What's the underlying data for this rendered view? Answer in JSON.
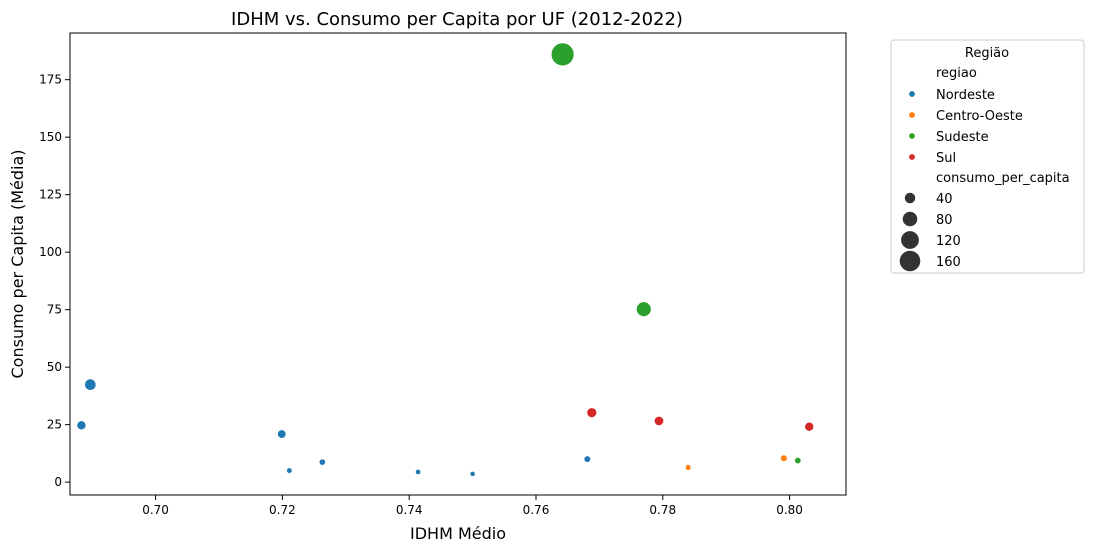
{
  "chart_data": {
    "type": "scatter",
    "title": "IDHM vs. Consumo per Capita por UF (2012-2022)",
    "xlabel": "IDHM Médio",
    "ylabel": "Consumo per Capita (Média)",
    "xlim": [
      0.6865,
      0.8089
    ],
    "ylim": [
      -5.6,
      195.3
    ],
    "x_ticks": [
      0.7,
      0.72,
      0.74,
      0.76,
      0.78,
      0.8
    ],
    "x_tick_labels": [
      "0.70",
      "0.72",
      "0.74",
      "0.76",
      "0.78",
      "0.80"
    ],
    "y_ticks": [
      0,
      25,
      50,
      75,
      100,
      125,
      150,
      175
    ],
    "y_tick_labels": [
      "0",
      "25",
      "50",
      "75",
      "100",
      "125",
      "150",
      "175"
    ],
    "grid": false,
    "legend": {
      "title": "Região",
      "placement": "outside-right",
      "hue_title": "regiao",
      "size_title": "consumo_per_capita",
      "size_labels": [
        "40",
        "80",
        "120",
        "160"
      ],
      "size_values": [
        40,
        80,
        120,
        160
      ]
    },
    "size_range": [
      3.6,
      186.0
    ],
    "series": [
      {
        "name": "Nordeste",
        "color": "#1f77b4",
        "points": [
          {
            "x": 0.6883,
            "y": 24.7
          },
          {
            "x": 0.6897,
            "y": 42.4
          },
          {
            "x": 0.7199,
            "y": 20.9
          },
          {
            "x": 0.7211,
            "y": 5.0
          },
          {
            "x": 0.7263,
            "y": 8.7
          },
          {
            "x": 0.7414,
            "y": 4.4
          },
          {
            "x": 0.75,
            "y": 3.6
          },
          {
            "x": 0.7681,
            "y": 10.0
          }
        ]
      },
      {
        "name": "Centro-Oeste",
        "color": "#ff7f0e",
        "points": [
          {
            "x": 0.784,
            "y": 6.4
          },
          {
            "x": 0.7991,
            "y": 10.4
          }
        ]
      },
      {
        "name": "Sudeste",
        "color": "#2ca02c",
        "points": [
          {
            "x": 0.7642,
            "y": 186.0
          },
          {
            "x": 0.777,
            "y": 75.2
          },
          {
            "x": 0.8013,
            "y": 9.4
          }
        ]
      },
      {
        "name": "Sul",
        "color": "#d62728",
        "points": [
          {
            "x": 0.7688,
            "y": 30.2
          },
          {
            "x": 0.7794,
            "y": 26.6
          },
          {
            "x": 0.8031,
            "y": 24.1
          }
        ]
      }
    ]
  }
}
